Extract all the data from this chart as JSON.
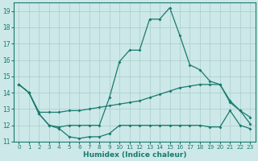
{
  "xlabel": "Humidex (Indice chaleur)",
  "bg_color": "#cce8e8",
  "grid_color": "#aacccc",
  "line_color": "#1a7a6e",
  "xlim": [
    -0.5,
    23.5
  ],
  "ylim": [
    11,
    19.5
  ],
  "yticks": [
    11,
    12,
    13,
    14,
    15,
    16,
    17,
    18,
    19
  ],
  "xticks": [
    0,
    1,
    2,
    3,
    4,
    5,
    6,
    7,
    8,
    9,
    10,
    11,
    12,
    13,
    14,
    15,
    16,
    17,
    18,
    19,
    20,
    21,
    22,
    23
  ],
  "line1_x": [
    0,
    1,
    2,
    3,
    4,
    5,
    6,
    7,
    8,
    9,
    10,
    11,
    12,
    13,
    14,
    15,
    16,
    17,
    18,
    19,
    20,
    21,
    22,
    23
  ],
  "line1_y": [
    14.5,
    14.0,
    12.7,
    12.0,
    11.8,
    11.3,
    11.2,
    11.3,
    11.3,
    11.5,
    12.0,
    12.0,
    12.0,
    12.0,
    12.0,
    12.0,
    12.0,
    12.0,
    12.0,
    11.9,
    11.9,
    12.9,
    12.0,
    11.8
  ],
  "line2_x": [
    0,
    1,
    2,
    3,
    4,
    5,
    6,
    7,
    8,
    9,
    10,
    11,
    12,
    13,
    14,
    15,
    16,
    17,
    18,
    19,
    20,
    21,
    22,
    23
  ],
  "line2_y": [
    14.5,
    14.0,
    12.8,
    12.8,
    12.8,
    12.9,
    12.9,
    13.0,
    13.1,
    13.2,
    13.3,
    13.4,
    13.5,
    13.7,
    13.9,
    14.1,
    14.3,
    14.4,
    14.5,
    14.5,
    14.5,
    13.5,
    12.9,
    12.5
  ],
  "line3_x": [
    0,
    1,
    2,
    3,
    4,
    5,
    6,
    7,
    8,
    9,
    10,
    11,
    12,
    13,
    14,
    15,
    16,
    17,
    18,
    19,
    20,
    21,
    22,
    23
  ],
  "line3_y": [
    14.5,
    14.0,
    12.7,
    12.0,
    11.9,
    12.0,
    12.0,
    12.0,
    12.0,
    13.7,
    15.9,
    16.6,
    16.6,
    18.5,
    18.5,
    19.2,
    17.5,
    15.7,
    15.4,
    14.7,
    14.5,
    13.4,
    12.9,
    12.1
  ],
  "figsize": [
    3.2,
    2.0
  ],
  "dpi": 100
}
